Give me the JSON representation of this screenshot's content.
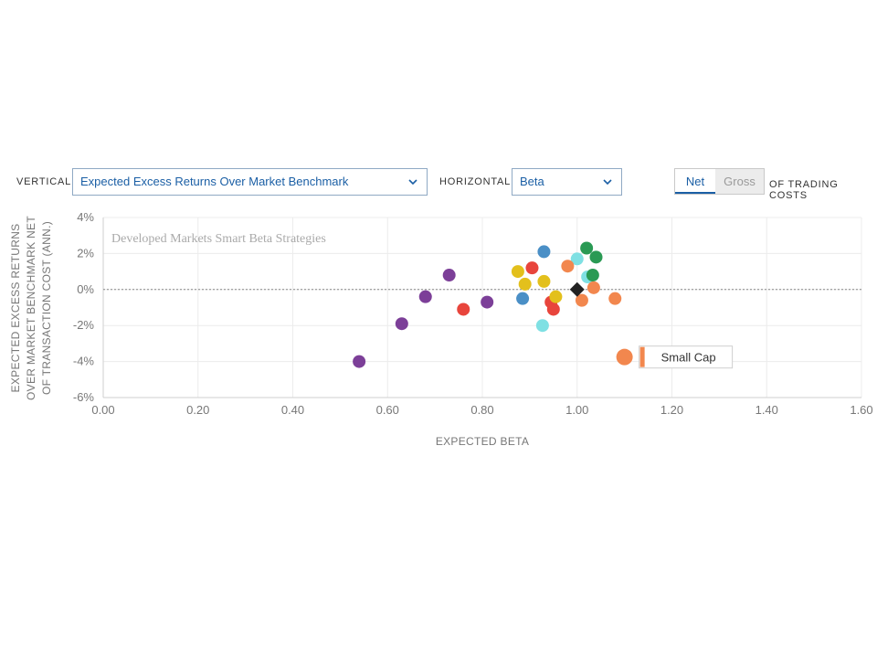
{
  "controls": {
    "vertical_label": "VERTICAL",
    "vertical_value": "Expected Excess Returns Over Market Benchmark",
    "horizontal_label": "HORIZONTAL",
    "horizontal_value": "Beta",
    "toggle": {
      "net": "Net",
      "gross": "Gross",
      "active": "net"
    },
    "suffix": "OF TRADING COSTS"
  },
  "colors": {
    "accent": "#1b5fa5",
    "purple": "#7c3f98",
    "red": "#e8453c",
    "yellow": "#e3c01c",
    "blue": "#4a8fc6",
    "cyan": "#7fe0e3",
    "green": "#2a9a54",
    "orange": "#f2874e",
    "benchmark": "#222222"
  },
  "chart_data": {
    "type": "scatter",
    "title": "Developed Markets Smart Beta Strategies",
    "xlabel": "EXPECTED BETA",
    "ylabel_lines": [
      "EXPECTED EXCESS RETURNS",
      "OVER MARKET BENCHMARK NET",
      "OF TRANSACTION COST (ANN.)"
    ],
    "xlim": [
      0,
      1.6
    ],
    "ylim": [
      -6,
      4
    ],
    "x_ticks": [
      "0.00",
      "0.20",
      "0.40",
      "0.60",
      "0.80",
      "1.00",
      "1.20",
      "1.40",
      "1.60"
    ],
    "y_ticks": [
      "4%",
      "2%",
      "0%",
      "-2%",
      "-4%",
      "-6%"
    ],
    "reference_line_y": 0,
    "points": [
      {
        "x": 0.54,
        "y": -4.0,
        "color": "purple"
      },
      {
        "x": 0.63,
        "y": -1.9,
        "color": "purple"
      },
      {
        "x": 0.68,
        "y": -0.4,
        "color": "purple"
      },
      {
        "x": 0.73,
        "y": 0.8,
        "color": "purple"
      },
      {
        "x": 0.81,
        "y": -0.7,
        "color": "purple"
      },
      {
        "x": 0.76,
        "y": -1.1,
        "color": "red"
      },
      {
        "x": 0.905,
        "y": 1.2,
        "color": "red"
      },
      {
        "x": 0.945,
        "y": -0.7,
        "color": "red"
      },
      {
        "x": 0.95,
        "y": -1.1,
        "color": "red"
      },
      {
        "x": 0.875,
        "y": 1.0,
        "color": "yellow"
      },
      {
        "x": 0.89,
        "y": 0.3,
        "color": "yellow"
      },
      {
        "x": 0.93,
        "y": 0.45,
        "color": "yellow"
      },
      {
        "x": 0.955,
        "y": -0.4,
        "color": "yellow"
      },
      {
        "x": 0.93,
        "y": 2.1,
        "color": "blue"
      },
      {
        "x": 0.885,
        "y": -0.5,
        "color": "blue"
      },
      {
        "x": 0.927,
        "y": -2.0,
        "color": "cyan"
      },
      {
        "x": 1.0,
        "y": 1.7,
        "color": "cyan"
      },
      {
        "x": 1.022,
        "y": 0.7,
        "color": "cyan"
      },
      {
        "x": 1.02,
        "y": 2.3,
        "color": "green"
      },
      {
        "x": 1.04,
        "y": 1.8,
        "color": "green"
      },
      {
        "x": 1.033,
        "y": 0.8,
        "color": "green"
      },
      {
        "x": 0.98,
        "y": 1.3,
        "color": "orange"
      },
      {
        "x": 1.01,
        "y": -0.6,
        "color": "orange"
      },
      {
        "x": 1.035,
        "y": 0.1,
        "color": "orange"
      },
      {
        "x": 1.08,
        "y": -0.5,
        "color": "orange"
      },
      {
        "x": 1.1,
        "y": -3.75,
        "color": "orange",
        "highlight": true,
        "label": "Small Cap"
      }
    ],
    "benchmark": {
      "x": 1.0,
      "y": 0.0
    }
  }
}
